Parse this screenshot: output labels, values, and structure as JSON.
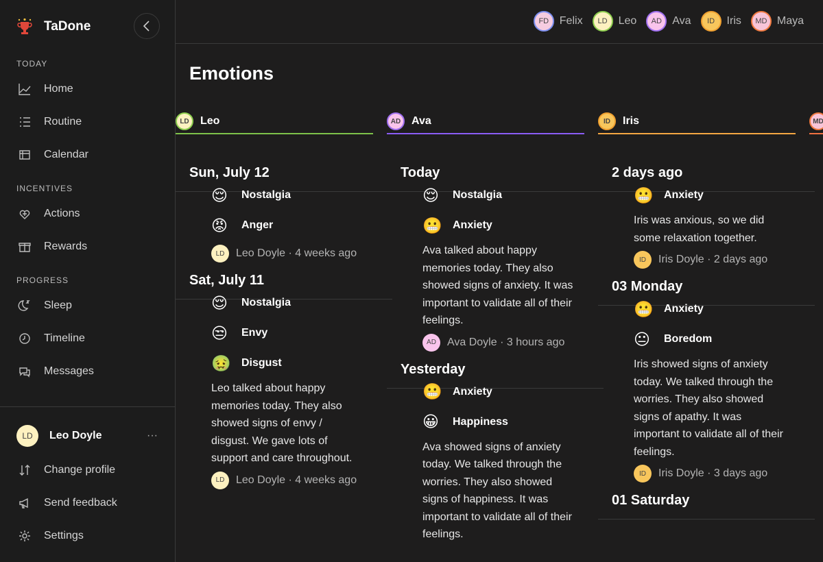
{
  "app": {
    "name": "TaDone"
  },
  "sidebar": {
    "sections": [
      {
        "title": "TODAY",
        "items": [
          "Home",
          "Routine",
          "Calendar"
        ]
      },
      {
        "title": "INCENTIVES",
        "items": [
          "Actions",
          "Rewards"
        ]
      },
      {
        "title": "PROGRESS",
        "items": [
          "Sleep",
          "Timeline",
          "Messages"
        ]
      }
    ],
    "user": {
      "initials": "LD",
      "name": "Leo Doyle",
      "more": "···"
    },
    "footer_items": [
      "Change profile",
      "Send feedback",
      "Settings"
    ]
  },
  "top_users": [
    {
      "initials": "FD",
      "name": "Felix",
      "color": "#f6cce0",
      "border": "#7d90f0"
    },
    {
      "initials": "LD",
      "name": "Leo",
      "color": "#fdf1c0",
      "border": "#8fcf50"
    },
    {
      "initials": "AD",
      "name": "Ava",
      "color": "#f9c4ec",
      "border": "#a070f0"
    },
    {
      "initials": "ID",
      "name": "Iris",
      "color": "#f8c65c",
      "border": "#f0a030"
    },
    {
      "initials": "MD",
      "name": "Maya",
      "color": "#f8c4d8",
      "border": "#f07a40"
    }
  ],
  "page_title": "Emotions",
  "columns": [
    {
      "initials": "LD",
      "name": "Leo",
      "color": "#fdf1c0",
      "border": "#8fcf50",
      "line": "#7ec24a",
      "groups": [
        {
          "date": "Sun, July 12",
          "emotions": [
            {
              "emoji": "😌",
              "name": "Nostalgia"
            },
            {
              "emoji": "😡",
              "name": "Anger"
            }
          ],
          "meta": "Leo Doyle · 4 weeks ago"
        },
        {
          "date": "Sat, July 11",
          "emotions": [
            {
              "emoji": "😌",
              "name": "Nostalgia"
            },
            {
              "emoji": "😒",
              "name": "Envy"
            },
            {
              "emoji": "🤢",
              "name": "Disgust"
            }
          ],
          "note": "Leo talked about happy memories today. They also showed signs of envy / disgust. We gave lots of support and care throughout.",
          "meta": "Leo Doyle · 4 weeks ago"
        }
      ]
    },
    {
      "initials": "AD",
      "name": "Ava",
      "color": "#f9c4ec",
      "border": "#a070f0",
      "line": "#8b5cf6",
      "groups": [
        {
          "date": "Today",
          "emotions": [
            {
              "emoji": "😌",
              "name": "Nostalgia"
            },
            {
              "emoji": "😬",
              "name": "Anxiety"
            }
          ],
          "note": "Ava talked about happy memories today. They also showed signs of anxiety. It was important to validate all of their feelings.",
          "meta": "Ava Doyle · 3 hours ago"
        },
        {
          "date": "Yesterday",
          "emotions": [
            {
              "emoji": "😬",
              "name": "Anxiety"
            },
            {
              "emoji": "😀",
              "name": "Happiness"
            }
          ],
          "note": "Ava showed signs of anxiety today. We talked through the worries. They also showed signs of happiness. It was important to validate all of their feelings."
        }
      ]
    },
    {
      "initials": "ID",
      "name": "Iris",
      "color": "#f8c65c",
      "border": "#f0a030",
      "line": "#f5a742",
      "groups": [
        {
          "date": "2 days ago",
          "emotions": [
            {
              "emoji": "😬",
              "name": "Anxiety"
            }
          ],
          "note": "Iris was anxious, so we did some relaxation together.",
          "meta": "Iris Doyle · 2 days ago"
        },
        {
          "date": "03 Monday",
          "emotions": [
            {
              "emoji": "😬",
              "name": "Anxiety"
            },
            {
              "emoji": "😐",
              "name": "Boredom"
            }
          ],
          "note": "Iris showed signs of anxiety today. We talked through the worries. They also showed signs of apathy. It was important to validate all of their feelings.",
          "meta": "Iris Doyle · 3 days ago"
        },
        {
          "date": "01 Saturday"
        }
      ]
    },
    {
      "initials": "MD",
      "color": "#f8c4d8",
      "border": "#f07a40",
      "line": "#f07040"
    }
  ]
}
